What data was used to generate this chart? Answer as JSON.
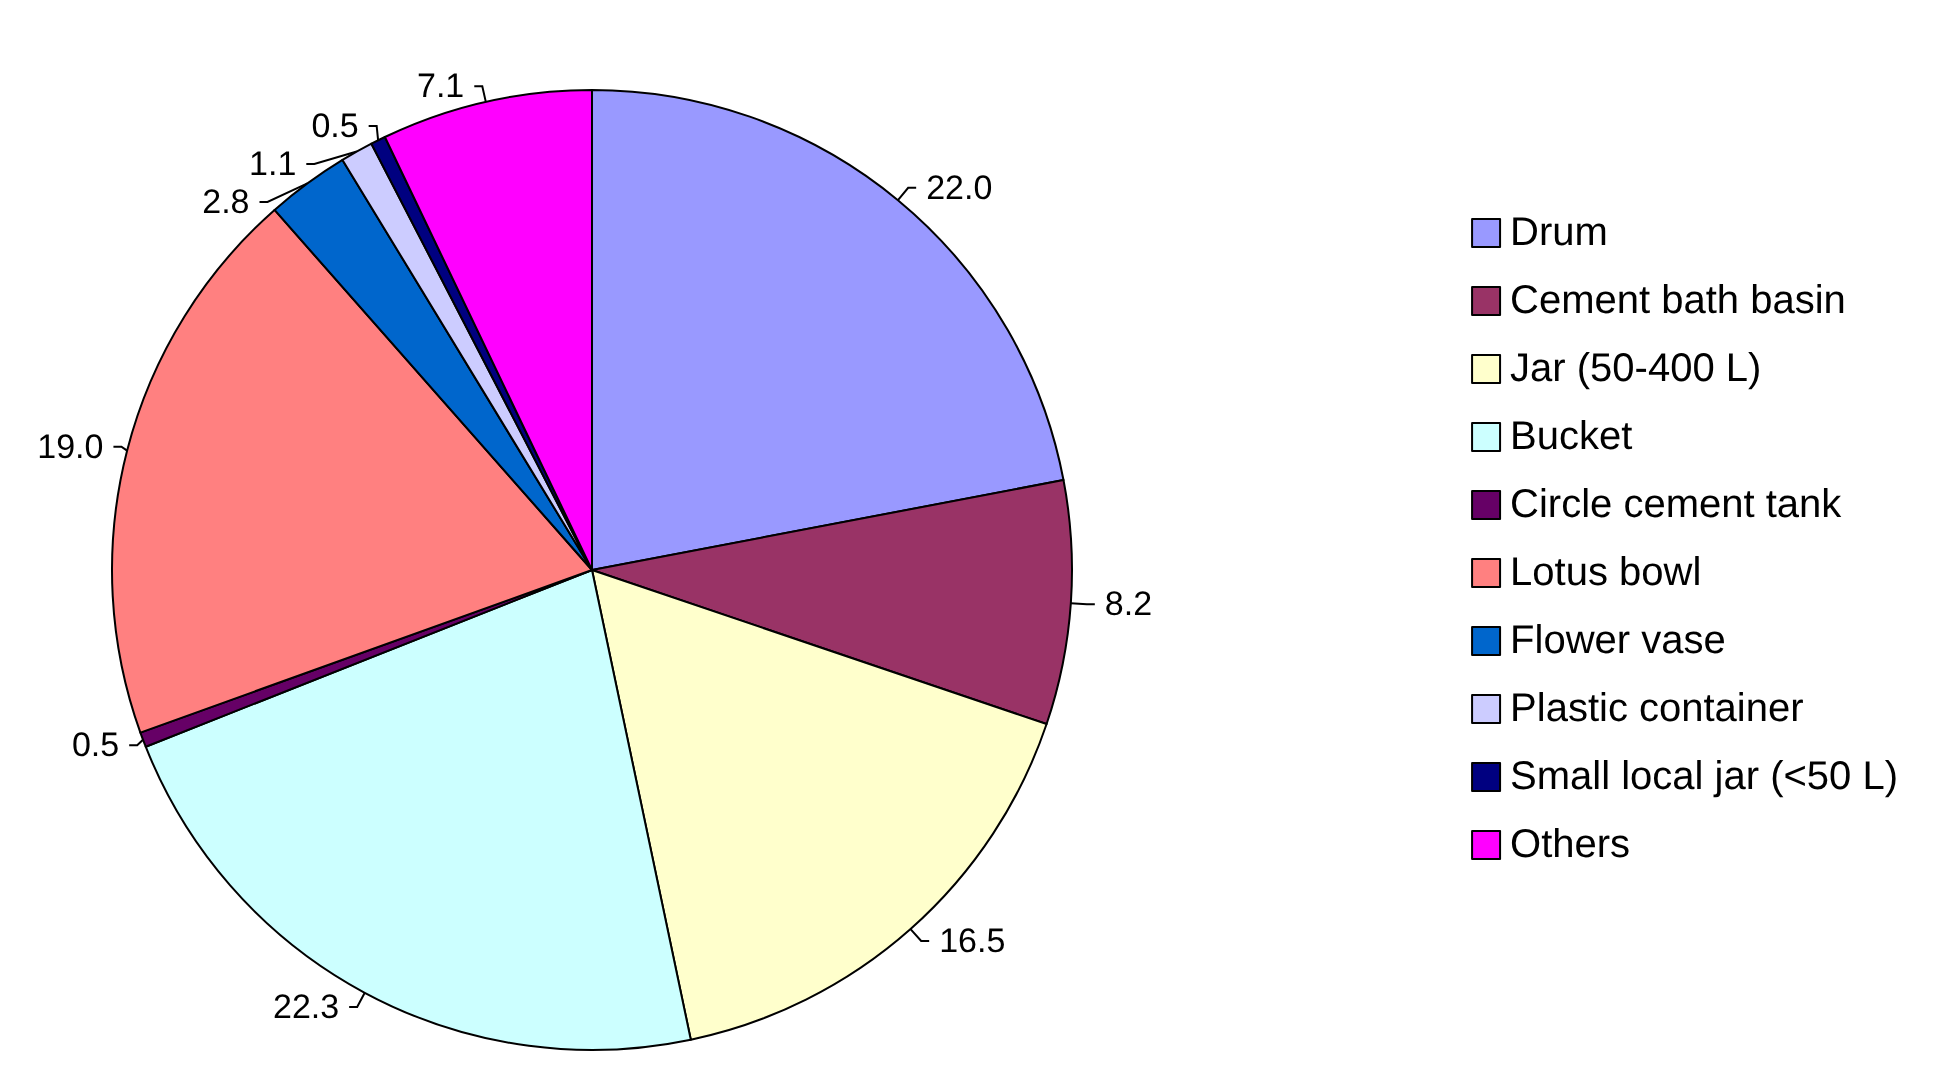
{
  "chart_data": {
    "type": "pie",
    "categories": [
      "Drum",
      "Cement bath basin",
      "Jar (50-400 L)",
      "Bucket",
      "Circle cement tank",
      "Lotus bowl",
      "Flower vase",
      "Plastic container",
      "Small local jar (<50 L)",
      "Others"
    ],
    "values": [
      22.0,
      8.2,
      16.5,
      22.3,
      0.5,
      19.0,
      2.8,
      1.1,
      0.5,
      7.1
    ],
    "colors": [
      "#9999ff",
      "#993366",
      "#ffffcc",
      "#ccffff",
      "#660066",
      "#ff8080",
      "#0066cc",
      "#ccccff",
      "#000080",
      "#ff00ff"
    ],
    "value_labels": [
      "22.0",
      "8.2",
      "16.5",
      "22.3",
      "0.5",
      "19.0",
      "2.8",
      "1.1",
      "0.5",
      "7.1"
    ],
    "legend": "right"
  }
}
